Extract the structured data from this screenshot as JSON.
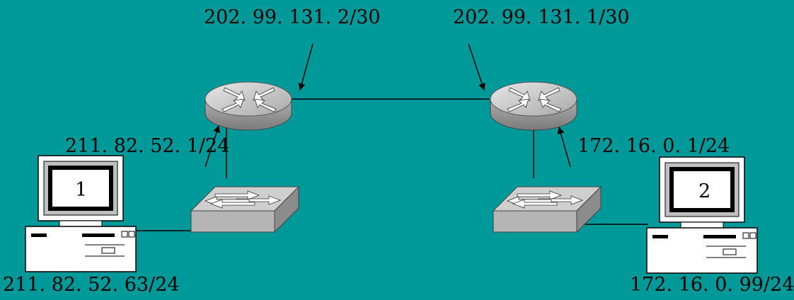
{
  "diagram": {
    "background": "#009999",
    "labels": {
      "router1_wan_ip": "202. 99. 131. 2/30",
      "router2_wan_ip": "202. 99. 131. 1/30",
      "router1_lan_ip": "211. 82. 52. 1/24",
      "router2_lan_ip": "172. 16. 0. 1/24",
      "pc1_ip": "211. 82. 52. 63/24",
      "pc2_ip": "172. 16. 0. 99/24",
      "pc1_screen": "1",
      "pc2_screen": "2"
    },
    "nodes": [
      {
        "name": "pc1",
        "type": "computer-icon"
      },
      {
        "name": "switch1",
        "type": "switch-icon"
      },
      {
        "name": "router1",
        "type": "router-icon"
      },
      {
        "name": "router2",
        "type": "router-icon"
      },
      {
        "name": "switch2",
        "type": "switch-icon"
      },
      {
        "name": "pc2",
        "type": "computer-icon"
      }
    ],
    "links": [
      {
        "from": "pc1",
        "to": "switch1"
      },
      {
        "from": "switch1",
        "to": "router1"
      },
      {
        "from": "router1",
        "to": "router2"
      },
      {
        "from": "router2",
        "to": "switch2"
      },
      {
        "from": "switch2",
        "to": "pc2"
      }
    ]
  }
}
